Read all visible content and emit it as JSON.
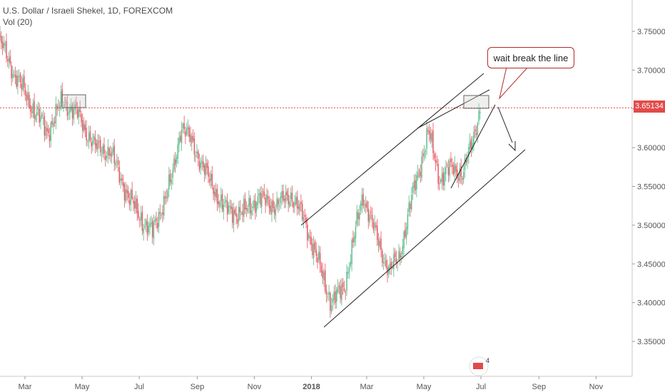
{
  "chart_title": "U.S. Dollar / Israeli Shekel, 1D, FOREXCOM",
  "volume_label": "Vol (20)",
  "callout_text": "wait break the line",
  "watermark_badge": "4",
  "colors": {
    "up": "#53b987",
    "down": "#eb4d5c",
    "price_line": "#e24a4a",
    "lines": "#222222",
    "callout_border": "#b22b2b"
  },
  "chart_data": {
    "type": "candlestick",
    "title": "U.S. Dollar / Israeli Shekel, 1D, FOREXCOM",
    "ylim": [
      3.3,
      3.78
    ],
    "y_ticks": [
      "3.75000",
      "3.70000",
      "3.65000",
      "3.60000",
      "3.55000",
      "3.50000",
      "3.45000",
      "3.40000",
      "3.35000"
    ],
    "x_ticks": [
      "Mar",
      "May",
      "Jul",
      "Sep",
      "Nov",
      "2018",
      "Mar",
      "May",
      "Jul",
      "Sep",
      "Nov"
    ],
    "last_price": "3.65134",
    "close_path": [
      [
        "2017-02-01",
        3.74
      ],
      [
        "2017-02-20",
        3.69
      ],
      [
        "2017-03-10",
        3.65
      ],
      [
        "2017-03-25",
        3.62
      ],
      [
        "2017-04-10",
        3.66
      ],
      [
        "2017-04-25",
        3.645
      ],
      [
        "2017-05-15",
        3.6
      ],
      [
        "2017-05-31",
        3.595
      ],
      [
        "2017-06-20",
        3.535
      ],
      [
        "2017-07-05",
        3.505
      ],
      [
        "2017-07-15",
        3.49
      ],
      [
        "2017-08-05",
        3.56
      ],
      [
        "2017-08-15",
        3.63
      ],
      [
        "2017-08-29",
        3.6
      ],
      [
        "2017-09-15",
        3.555
      ],
      [
        "2017-10-01",
        3.52
      ],
      [
        "2017-10-20",
        3.515
      ],
      [
        "2017-11-05",
        3.535
      ],
      [
        "2017-11-25",
        3.525
      ],
      [
        "2017-12-10",
        3.54
      ],
      [
        "2017-12-25",
        3.505
      ],
      [
        "2018-01-10",
        3.445
      ],
      [
        "2018-01-22",
        3.4
      ],
      [
        "2018-02-05",
        3.42
      ],
      [
        "2018-02-25",
        3.54
      ],
      [
        "2018-03-10",
        3.49
      ],
      [
        "2018-03-25",
        3.44
      ],
      [
        "2018-04-05",
        3.46
      ],
      [
        "2018-04-20",
        3.545
      ],
      [
        "2018-05-06",
        3.62
      ],
      [
        "2018-05-18",
        3.56
      ],
      [
        "2018-06-01",
        3.575
      ],
      [
        "2018-06-12",
        3.565
      ],
      [
        "2018-06-22",
        3.61
      ],
      [
        "2018-07-01",
        3.655
      ]
    ]
  }
}
